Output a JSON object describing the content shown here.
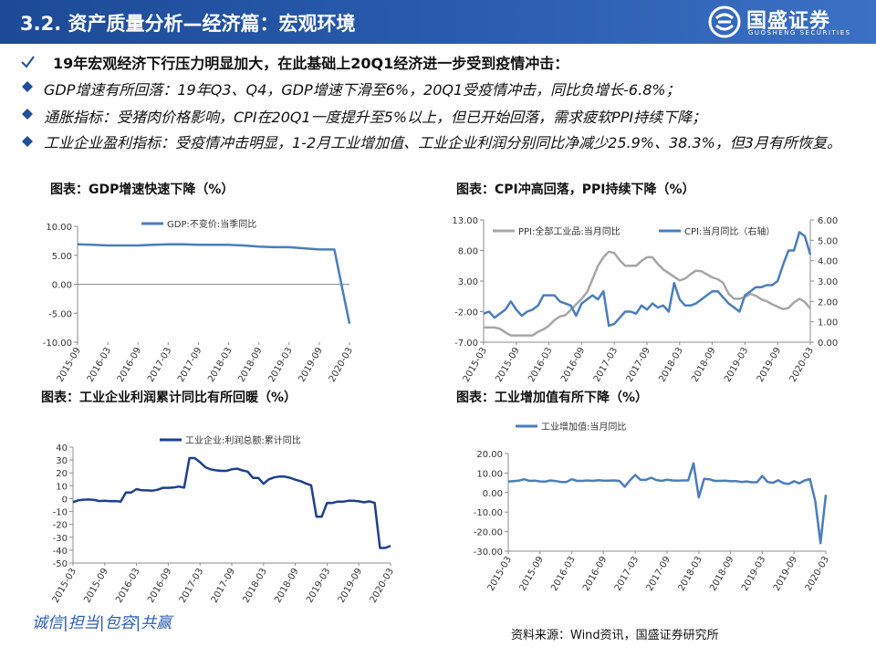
{
  "header": {
    "title": "3.2. 资产质量分析—经济篇：宏观环境",
    "logo": "国盛证券",
    "logo_sub": "GUOSHENG SECURITIES"
  },
  "bullets": [
    "19年宏观经济下行压力明显加大，在此基础上20Q1经济进一步受到疫情冲击：",
    "GDP增速有所回落：19年Q3、Q4，GDP增速下滑至6%，20Q1受疫情冲击，同比负增长-6.8%；",
    "通胀指标：受猪肉价格影响，CPI在20Q1一度提升至5%以上，但已开始回落，需求疲软PPI持续下降；",
    "工业企业盈利指标：受疫情冲击明显，1-2月工业增加值、工业企业利润分别同比净减少25.9%、38.3%，但3月有所恢复。"
  ],
  "footer": {
    "motto": "诚信|担当|包容|共赢",
    "source": "资料来源：Wind资讯，国盛证券研究所"
  },
  "chart_data": [
    {
      "type": "line",
      "title": "图表：GDP增速快速下降（%）",
      "categories": [
        "2015-09",
        null,
        "2016-03",
        null,
        "2016-09",
        null,
        "2017-03",
        null,
        "2017-09",
        null,
        "2018-03",
        null,
        "2018-09",
        null,
        "2019-03",
        null,
        "2019-09",
        null,
        "2020-03"
      ],
      "series": [
        {
          "name": "GDP:不变价:当季同比",
          "color": "#4a7ebb",
          "values": [
            6.9,
            6.8,
            6.7,
            6.7,
            6.7,
            6.8,
            6.9,
            6.9,
            6.8,
            6.8,
            6.8,
            6.7,
            6.5,
            6.4,
            6.4,
            6.2,
            6.0,
            6.0,
            -6.8
          ]
        }
      ],
      "ylim": [
        -10,
        10
      ],
      "yticks": [
        {
          "value": -10,
          "label": "-10.00"
        },
        {
          "value": -5,
          "label": "-5.00"
        },
        {
          "value": 0,
          "label": "0.00"
        },
        {
          "value": 5,
          "label": "5.00"
        },
        {
          "value": 10,
          "label": "10.00"
        }
      ]
    },
    {
      "type": "line",
      "title": "图表：CPI冲高回落，PPI持续下降（%）",
      "categories": [
        "2015-03",
        null,
        null,
        null,
        null,
        null,
        "2015-09",
        null,
        null,
        null,
        null,
        null,
        "2016-03",
        null,
        null,
        null,
        null,
        null,
        "2016-09",
        null,
        null,
        null,
        null,
        null,
        "2017-03",
        null,
        null,
        null,
        null,
        null,
        "2017-09",
        null,
        null,
        null,
        null,
        null,
        "2018-03",
        null,
        null,
        null,
        null,
        null,
        "2018-09",
        null,
        null,
        null,
        null,
        null,
        "2019-03",
        null,
        null,
        null,
        null,
        null,
        "2019-09",
        null,
        null,
        null,
        null,
        null,
        "2020-03"
      ],
      "series": [
        {
          "name": "PPI:全部工业品:当月同比",
          "color": "#a6a6a6",
          "values": [
            -4.6,
            -4.6,
            -4.6,
            -4.8,
            -5.4,
            -5.9,
            -5.9,
            -5.9,
            -5.9,
            -5.9,
            -5.3,
            -4.9,
            -4.3,
            -3.4,
            -2.8,
            -2.6,
            -1.7,
            -0.8,
            0.1,
            1.2,
            3.3,
            5.5,
            6.9,
            7.8,
            7.6,
            6.4,
            5.5,
            5.5,
            5.5,
            6.3,
            6.9,
            6.9,
            5.8,
            4.9,
            4.3,
            3.7,
            3.1,
            3.4,
            4.1,
            4.7,
            4.6,
            4.1,
            3.6,
            3.3,
            2.7,
            0.9,
            0.1,
            0.1,
            0.4,
            0.9,
            0.6,
            0.0,
            -0.3,
            -0.8,
            -1.2,
            -1.6,
            -1.4,
            -0.5,
            0.1,
            -0.4,
            -1.5
          ]
        },
        {
          "name": "CPI:当月同比（右轴）",
          "color": "#4a7ebb",
          "axis": "y2",
          "values": [
            1.4,
            1.5,
            1.2,
            1.4,
            1.6,
            2.0,
            1.6,
            1.3,
            1.5,
            1.6,
            1.8,
            2.3,
            2.3,
            2.3,
            2.0,
            1.9,
            1.8,
            1.3,
            1.9,
            2.1,
            2.3,
            2.1,
            2.5,
            0.8,
            0.9,
            1.2,
            1.5,
            1.5,
            1.4,
            1.8,
            1.6,
            1.9,
            1.7,
            1.8,
            1.5,
            2.9,
            2.1,
            1.8,
            1.8,
            1.9,
            2.1,
            2.3,
            2.5,
            2.5,
            2.2,
            1.9,
            1.7,
            1.5,
            2.3,
            2.5,
            2.7,
            2.7,
            2.8,
            2.8,
            3.0,
            3.8,
            4.5,
            4.5,
            5.4,
            5.2,
            4.3
          ]
        }
      ],
      "ylim": [
        -7,
        13
      ],
      "yticks": [
        {
          "value": -7,
          "label": "-7.00"
        },
        {
          "value": -2,
          "label": "-2.00"
        },
        {
          "value": 3,
          "label": "3.00"
        },
        {
          "value": 8,
          "label": "8.00"
        },
        {
          "value": 13,
          "label": "13.00"
        }
      ],
      "y2lim": [
        0,
        6
      ],
      "y2ticks": [
        {
          "value": 0,
          "label": "0.00"
        },
        {
          "value": 1,
          "label": "1.00"
        },
        {
          "value": 2,
          "label": "2.00"
        },
        {
          "value": 3,
          "label": "3.00"
        },
        {
          "value": 4,
          "label": "4.00"
        },
        {
          "value": 5,
          "label": "5.00"
        },
        {
          "value": 6,
          "label": "6.00"
        }
      ]
    },
    {
      "type": "line",
      "title": "图表：工业企业利润累计同比有所回暖（%）",
      "categories": [
        "2015-03",
        null,
        null,
        null,
        null,
        null,
        "2015-09",
        null,
        null,
        null,
        null,
        null,
        "2016-03",
        null,
        null,
        null,
        null,
        null,
        "2016-09",
        null,
        null,
        null,
        null,
        null,
        "2017-03",
        null,
        null,
        null,
        null,
        null,
        "2017-09",
        null,
        null,
        null,
        null,
        null,
        "2018-03",
        null,
        null,
        null,
        null,
        null,
        "2018-09",
        null,
        null,
        null,
        null,
        null,
        "2019-03",
        null,
        null,
        null,
        null,
        null,
        "2019-09",
        null,
        null,
        null,
        null,
        null,
        "2020-03"
      ],
      "series": [
        {
          "name": "工业企业:利润总额:累计同比",
          "color": "#1f3f8f",
          "values": [
            -2.7,
            -1.3,
            -0.8,
            -0.7,
            -1.0,
            -1.9,
            -1.7,
            -2.0,
            -1.9,
            -2.3,
            4.8,
            4.8,
            7.4,
            6.5,
            6.4,
            6.2,
            6.9,
            8.4,
            8.4,
            8.6,
            9.4,
            8.5,
            31.5,
            31.5,
            28.3,
            24.4,
            22.7,
            22.0,
            21.6,
            21.6,
            22.8,
            23.3,
            21.9,
            21.0,
            16.1,
            16.1,
            11.6,
            15.0,
            16.5,
            17.2,
            17.1,
            16.2,
            14.7,
            13.6,
            11.8,
            10.3,
            -14.0,
            -14.0,
            -3.3,
            -3.4,
            -2.3,
            -2.4,
            -1.7,
            -1.7,
            -2.1,
            -2.9,
            -2.1,
            -3.3,
            -38.3,
            -38.3,
            -36.7
          ]
        }
      ],
      "ylim": [
        -50,
        40
      ],
      "yticks": [
        -50,
        -40,
        -30,
        -20,
        -10,
        0,
        10,
        20,
        30,
        40
      ]
    },
    {
      "type": "line",
      "title": "图表：工业增加值有所下降（%）",
      "categories": [
        "2015-03",
        null,
        null,
        null,
        null,
        null,
        "2015-09",
        null,
        null,
        null,
        null,
        null,
        "2016-03",
        null,
        null,
        null,
        null,
        null,
        "2016-09",
        null,
        null,
        null,
        null,
        null,
        "2017-03",
        null,
        null,
        null,
        null,
        null,
        "2017-09",
        null,
        null,
        null,
        null,
        null,
        "2018-03",
        null,
        null,
        null,
        null,
        null,
        "2018-09",
        null,
        null,
        null,
        null,
        null,
        "2019-03",
        null,
        null,
        null,
        null,
        null,
        "2019-09",
        null,
        null,
        null,
        null,
        null,
        "2020-03"
      ],
      "series": [
        {
          "name": "工业增加值:当月同比",
          "color": "#4a7ebb",
          "values": [
            5.6,
            5.9,
            6.1,
            6.8,
            6.0,
            6.1,
            5.7,
            5.6,
            6.2,
            5.9,
            5.4,
            5.4,
            6.8,
            6.0,
            6.0,
            6.2,
            6.0,
            6.3,
            6.1,
            6.1,
            6.2,
            6.0,
            3.0,
            6.3,
            9.0,
            6.5,
            6.5,
            7.6,
            6.4,
            6.0,
            6.6,
            6.2,
            6.1,
            6.2,
            6.2,
            15.0,
            -2.5,
            7.0,
            6.8,
            6.0,
            6.0,
            6.1,
            5.8,
            5.9,
            5.4,
            5.7,
            5.3,
            5.3,
            8.5,
            5.4,
            5.0,
            6.3,
            4.8,
            4.4,
            5.8,
            4.7,
            6.2,
            6.9,
            -4.3,
            -25.9,
            -1.1
          ]
        }
      ],
      "ylim": [
        -30,
        20
      ],
      "yticks": [
        {
          "value": -30,
          "label": "-30.00"
        },
        {
          "value": -20,
          "label": "-20.00"
        },
        {
          "value": -10,
          "label": "-10.00"
        },
        {
          "value": 0,
          "label": "0.00"
        },
        {
          "value": 10,
          "label": "10.00"
        },
        {
          "value": 20,
          "label": "20.00"
        }
      ]
    }
  ]
}
